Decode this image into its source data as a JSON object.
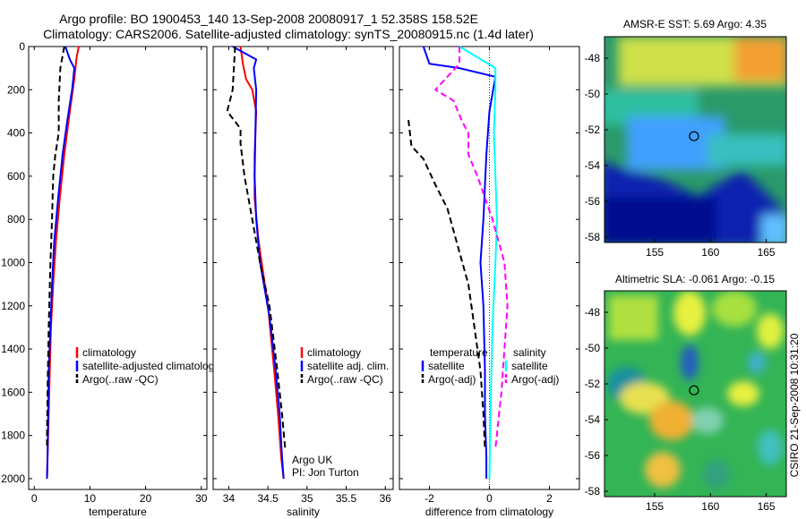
{
  "header": {
    "title_line1": "Argo profile: BO 1900453_140 13-Sep-2008 20080917_1 52.358S 158.52E",
    "title_line2": "Climatology: CARS2006. Satellite-adjusted climatology: synTS_20080915.nc (1.4d later)"
  },
  "side_label": "CSIRO 21-Sep-2008 10:31:20",
  "colors": {
    "climatology": "#ff0000",
    "satellite": "#0000ff",
    "argo": "#000000",
    "salinity_sat": "#00ffff",
    "salinity_argo": "#ff00ff"
  },
  "chart_data": [
    {
      "type": "line",
      "id": "temperature",
      "xlabel": "temperature",
      "xlim": [
        -1,
        31
      ],
      "ylim": [
        2050,
        0
      ],
      "xticks": [
        0,
        10,
        20,
        30
      ],
      "yticks": [
        0,
        200,
        400,
        600,
        800,
        1000,
        1200,
        1400,
        1600,
        1800,
        2000
      ],
      "series": [
        {
          "name": "climatology",
          "color": "#ff0000",
          "dash": "solid",
          "x": [
            8.0,
            7.6,
            7.2,
            6.4,
            5.4,
            4.6,
            3.9,
            3.4,
            3.0,
            2.8,
            2.6,
            2.4,
            2.3
          ],
          "y": [
            0,
            50,
            150,
            300,
            500,
            700,
            900,
            1100,
            1300,
            1500,
            1700,
            1900,
            2000
          ]
        },
        {
          "name": "satellite-adjusted climatology",
          "color": "#0000ff",
          "dash": "solid",
          "x": [
            5.6,
            6.4,
            7.2,
            6.8,
            5.9,
            5.1,
            4.3,
            3.6,
            3.2,
            2.9,
            2.6,
            2.5,
            2.4,
            2.3
          ],
          "y": [
            0,
            60,
            100,
            200,
            350,
            500,
            700,
            900,
            1100,
            1300,
            1500,
            1700,
            1900,
            2000
          ]
        },
        {
          "name": "Argo(..raw -QC)",
          "color": "#000000",
          "dash": "dashed",
          "x": [
            5.4,
            4.7,
            4.4,
            4.4,
            3.8,
            3.4,
            3.2,
            2.9,
            2.6,
            2.4,
            2.3,
            2.3
          ],
          "y": [
            0,
            100,
            250,
            400,
            500,
            600,
            800,
            1000,
            1300,
            1600,
            1800,
            1850
          ]
        }
      ],
      "legend": {
        "position": "lower-right",
        "entries": [
          "climatology",
          "satellite-adjusted climatology",
          "Argo(..raw -QC)"
        ]
      }
    },
    {
      "type": "line",
      "id": "salinity",
      "xlabel": "salinity",
      "xlim": [
        33.8,
        36.1
      ],
      "ylim": [
        2050,
        0
      ],
      "xticks": [
        34,
        34.5,
        35,
        35.5,
        36
      ],
      "xticklabels": [
        "34",
        "34.5",
        "35",
        "35.5",
        "36"
      ],
      "yticks": [
        0,
        200,
        400,
        600,
        800,
        1000,
        1200,
        1400,
        1600,
        1800,
        2000
      ],
      "series": [
        {
          "name": "climatology",
          "color": "#ff0000",
          "dash": "solid",
          "x": [
            34.15,
            34.18,
            34.22,
            34.3,
            34.35,
            34.33,
            34.33,
            34.38,
            34.5,
            34.58,
            34.63,
            34.67,
            34.7
          ],
          "y": [
            0,
            80,
            150,
            200,
            300,
            500,
            700,
            900,
            1200,
            1500,
            1700,
            1900,
            2000
          ]
        },
        {
          "name": "satellite adj. clim.",
          "color": "#0000ff",
          "dash": "solid",
          "x": [
            34.05,
            34.35,
            34.32,
            34.35,
            34.34,
            34.33,
            34.35,
            34.4,
            34.52,
            34.6,
            34.65,
            34.68,
            34.7
          ],
          "y": [
            0,
            60,
            100,
            200,
            400,
            600,
            800,
            1000,
            1250,
            1500,
            1700,
            1900,
            2000
          ]
        },
        {
          "name": "Argo(..raw -QC)",
          "color": "#000000",
          "dash": "dashed",
          "x": [
            34.08,
            34.05,
            33.98,
            34.15,
            34.15,
            34.2,
            34.3,
            34.4,
            34.52,
            34.62,
            34.68,
            34.72
          ],
          "y": [
            0,
            200,
            300,
            380,
            450,
            600,
            800,
            1000,
            1200,
            1500,
            1700,
            1860
          ]
        }
      ],
      "legend": {
        "position": "lower-right",
        "entries": [
          "climatology",
          "satellite adj. clim.",
          "Argo(..raw -QC)"
        ]
      },
      "annotation": [
        "Argo UK",
        "PI: Jon Turton"
      ]
    },
    {
      "type": "line",
      "id": "difference",
      "xlabel": "difference from climatology",
      "xlim": [
        -3,
        3
      ],
      "ylim": [
        2050,
        0
      ],
      "xticks": [
        -2,
        0,
        2
      ],
      "yticks": [
        0,
        200,
        400,
        600,
        800,
        1000,
        1200,
        1400,
        1600,
        1800,
        2000
      ],
      "series": [
        {
          "name": "temperature satellite",
          "color": "#0000ff",
          "dash": "solid",
          "x": [
            -2.2,
            -2.0,
            -1.0,
            0.2,
            0.0,
            -0.1,
            -0.2,
            -0.3,
            -0.2,
            -0.15,
            -0.15,
            -0.1,
            -0.1
          ],
          "y": [
            0,
            80,
            100,
            140,
            300,
            500,
            800,
            1000,
            1200,
            1500,
            1700,
            1900,
            2000
          ]
        },
        {
          "name": "temperature Argo(-adj)",
          "color": "#000000",
          "dash": "dashed",
          "x": [
            -2.7,
            -2.6,
            -2.2,
            -1.8,
            -1.4,
            -1.1,
            -0.7,
            -0.5,
            -0.3,
            -0.2,
            -0.15
          ],
          "y": [
            340,
            460,
            520,
            640,
            750,
            900,
            1100,
            1300,
            1500,
            1700,
            1860
          ]
        },
        {
          "name": "salinity satellite",
          "color": "#00ffff",
          "dash": "solid",
          "x": [
            -1.0,
            0.2,
            0.2,
            0.15,
            0.2,
            0.25,
            0.2,
            0.1,
            0.05,
            0.0
          ],
          "y": [
            0,
            100,
            200,
            400,
            600,
            800,
            1000,
            1300,
            1600,
            2000
          ]
        },
        {
          "name": "salinity Argo(-adj)",
          "color": "#ff00ff",
          "dash": "dashed",
          "x": [
            -1.0,
            -1.0,
            -1.8,
            -1.2,
            -0.9,
            -0.7,
            -0.7,
            -0.4,
            0.1,
            0.5,
            0.6,
            0.5,
            0.4,
            0.2
          ],
          "y": [
            0,
            80,
            200,
            250,
            350,
            400,
            500,
            600,
            800,
            1000,
            1200,
            1400,
            1600,
            1860
          ]
        }
      ],
      "legend": {
        "position": "lower-center",
        "groups": [
          {
            "title": "temperature",
            "entries": [
              "satellite",
              "Argo(-adj)"
            ]
          },
          {
            "title": "salinity",
            "entries": [
              "satellite",
              "Argo(-adj)"
            ]
          }
        ]
      }
    },
    {
      "type": "heatmap",
      "id": "sst_map",
      "title": "AMSR-E SST: 5.69  Argo: 4.35",
      "xlim": [
        150.5,
        166.8
      ],
      "ylim": [
        -58.3,
        -46.8
      ],
      "xticks": [
        155,
        160,
        165
      ],
      "yticks": [
        -48,
        -50,
        -52,
        -54,
        -56,
        -58
      ],
      "marker": {
        "lon": 158.52,
        "lat": -52.36
      }
    },
    {
      "type": "heatmap",
      "id": "sla_map",
      "title": "Altimetric SLA: -0.061  Argo: -0.15",
      "xlim": [
        150.5,
        166.8
      ],
      "ylim": [
        -58.3,
        -46.8
      ],
      "xticks": [
        155,
        160,
        165
      ],
      "yticks": [
        -48,
        -50,
        -52,
        -54,
        -56,
        -58
      ],
      "marker": {
        "lon": 158.52,
        "lat": -52.36
      }
    }
  ]
}
